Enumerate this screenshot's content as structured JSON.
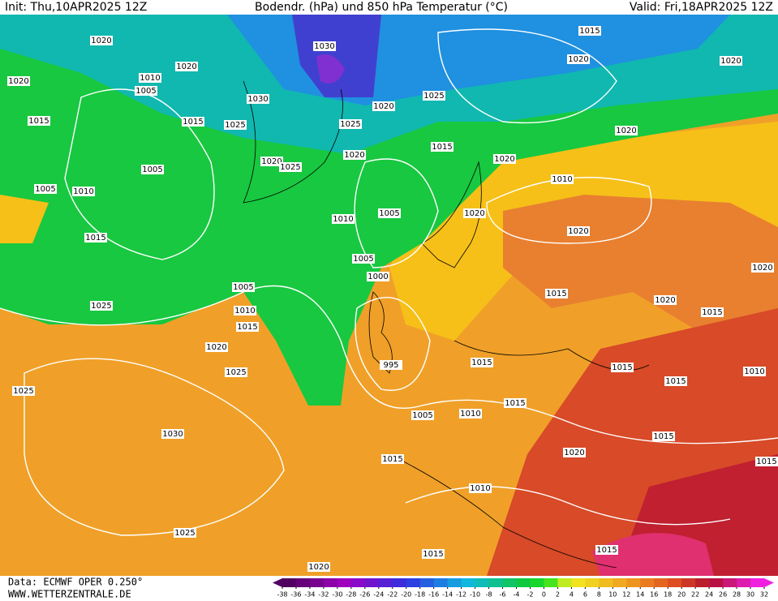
{
  "header": {
    "init": "Init: Thu,10APR2025 12Z",
    "title": "Bodendr. (hPa) und 850 hPa Temperatur (°C)",
    "valid": "Valid: Fri,18APR2025 12Z"
  },
  "footer": {
    "data_source": "Data: ECMWF OPER 0.250°",
    "website": "WWW.WETTERZENTRALE.DE"
  },
  "isobar_labels": [
    1020,
    1030,
    1015,
    1020,
    1020,
    1020,
    1020,
    1010,
    1005,
    1030,
    1020,
    1025,
    1015,
    1015,
    1025,
    1025,
    1015,
    1020,
    1020,
    1020,
    1025,
    1020,
    1005,
    1010,
    1005,
    1010,
    1005,
    1010,
    1020,
    1015,
    1020,
    1005,
    1000,
    1020,
    1005,
    1015,
    1020,
    1010,
    1025,
    1015,
    1015,
    1020,
    995,
    1015,
    1015,
    1025,
    1010,
    1015,
    1025,
    1015,
    1005,
    1010,
    1030,
    1015,
    1020,
    1015,
    1015,
    1010,
    1025,
    1015,
    1015,
    1020
  ],
  "colorbar": {
    "ticks": [
      -38,
      -36,
      -34,
      -32,
      -30,
      -28,
      -26,
      -24,
      -22,
      -20,
      -18,
      -16,
      -14,
      -12,
      -10,
      -8,
      -6,
      -4,
      -2,
      0,
      2,
      4,
      6,
      8,
      10,
      12,
      14,
      16,
      18,
      20,
      22,
      24,
      26,
      28,
      30,
      32
    ]
  }
}
